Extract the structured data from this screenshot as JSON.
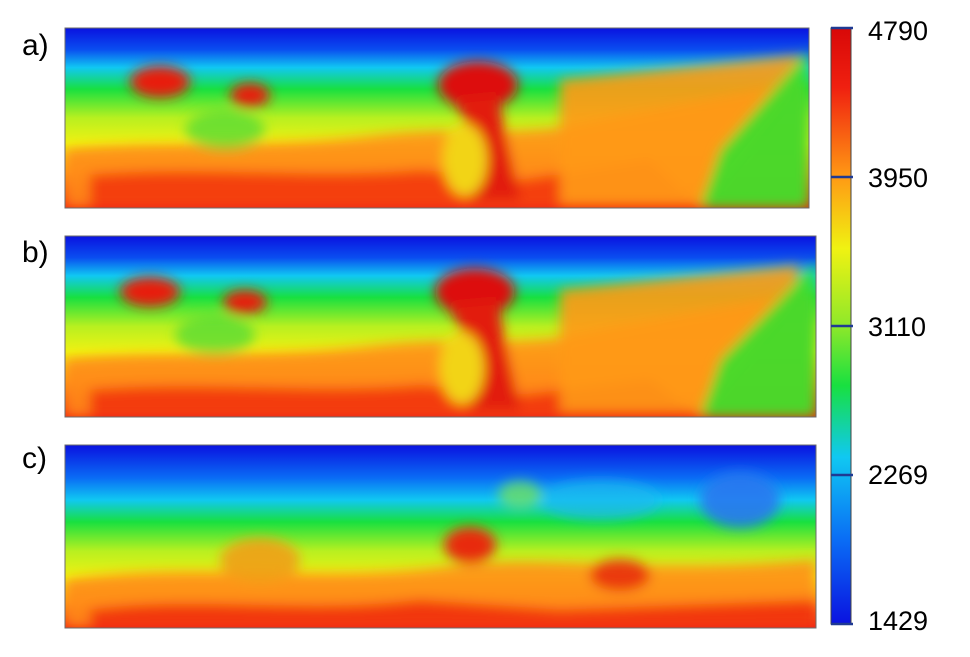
{
  "panels": [
    {
      "label": "a)"
    },
    {
      "label": "b)"
    },
    {
      "label": "c)"
    }
  ],
  "colorbar": {
    "ticks": [
      "4790",
      "3950",
      "3110",
      "2269",
      "1429"
    ],
    "colors": [
      "#0a12e0",
      "#0a6cf5",
      "#10c8f2",
      "#18e040",
      "#f0f212",
      "#ff9a14",
      "#f02010",
      "#d80808"
    ]
  }
}
